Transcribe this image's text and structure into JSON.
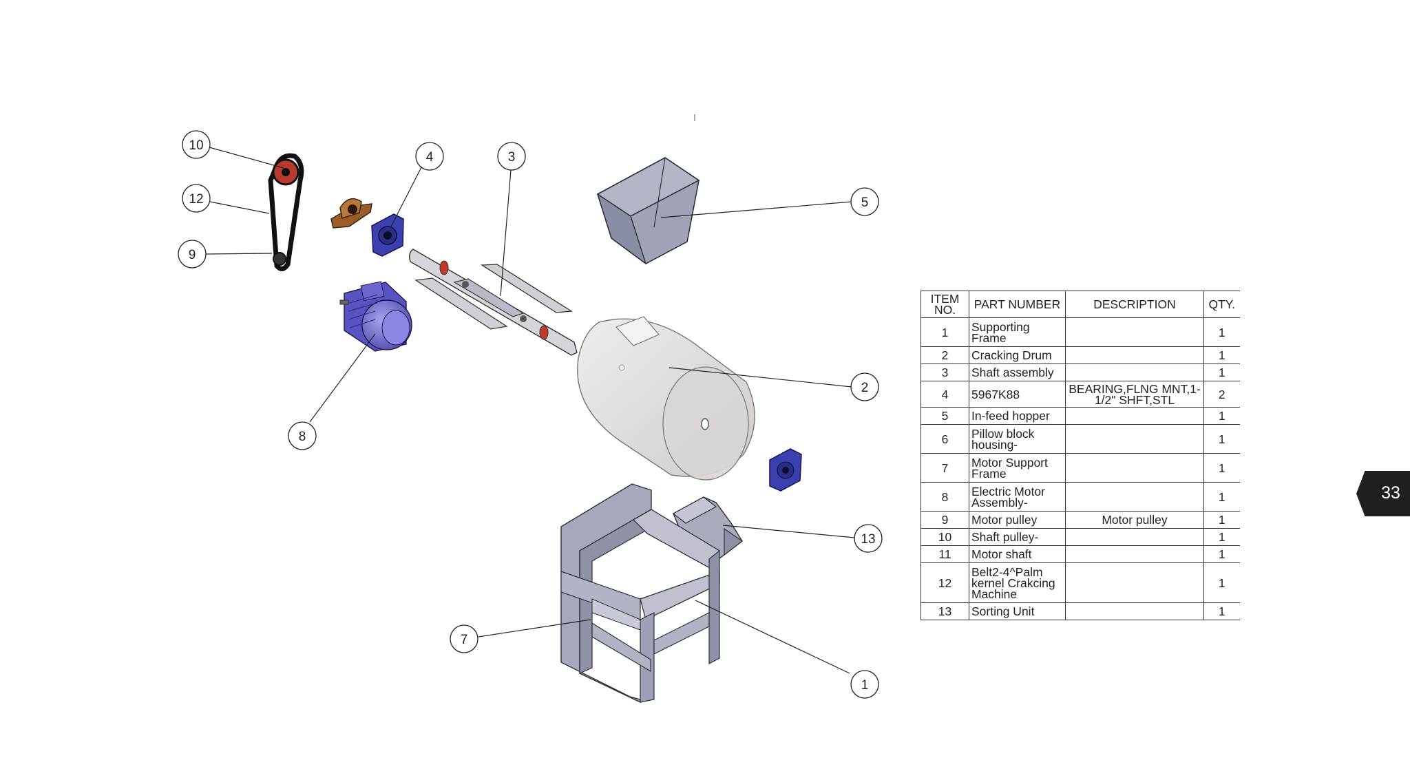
{
  "balloons": [
    {
      "id": "10",
      "label": "10"
    },
    {
      "id": "12",
      "label": "12"
    },
    {
      "id": "9",
      "label": "9"
    },
    {
      "id": "4",
      "label": "4"
    },
    {
      "id": "3",
      "label": "3"
    },
    {
      "id": "5",
      "label": "5"
    },
    {
      "id": "8",
      "label": "8"
    },
    {
      "id": "2",
      "label": "2"
    },
    {
      "id": "13",
      "label": "13"
    },
    {
      "id": "7",
      "label": "7"
    },
    {
      "id": "1",
      "label": "1"
    }
  ],
  "bom": {
    "headers": {
      "item": "ITEM NO.",
      "part": "PART NUMBER",
      "desc": "DESCRIPTION",
      "qty": "QTY."
    },
    "rows": [
      {
        "item": "1",
        "part": "Supporting Frame",
        "desc": "",
        "qty": "1"
      },
      {
        "item": "2",
        "part": "Cracking Drum",
        "desc": "",
        "qty": "1"
      },
      {
        "item": "3",
        "part": "Shaft assembly",
        "desc": "",
        "qty": "1"
      },
      {
        "item": "4",
        "part": "5967K88",
        "desc": "BEARING,FLNG MNT,1-1/2\" SHFT,STL",
        "qty": "2"
      },
      {
        "item": "5",
        "part": "In-feed hopper",
        "desc": "",
        "qty": "1"
      },
      {
        "item": "6",
        "part": "Pillow block housing-",
        "desc": "",
        "qty": "1"
      },
      {
        "item": "7",
        "part": "Motor Support Frame",
        "desc": "",
        "qty": "1"
      },
      {
        "item": "8",
        "part": "Electric Motor Assembly-",
        "desc": "",
        "qty": "1"
      },
      {
        "item": "9",
        "part": "Motor pulley",
        "desc": "Motor pulley",
        "qty": "1"
      },
      {
        "item": "10",
        "part": "Shaft pulley-",
        "desc": "",
        "qty": "1"
      },
      {
        "item": "11",
        "part": "Motor shaft",
        "desc": "",
        "qty": "1"
      },
      {
        "item": "12",
        "part": "Belt2-4^Palm kernel Crakcing Machine",
        "desc": "",
        "qty": "1"
      },
      {
        "item": "13",
        "part": "Sorting Unit",
        "desc": "",
        "qty": "1"
      }
    ]
  },
  "page_number": "33",
  "colors": {
    "frame_steel": "#b9bccb",
    "bearing_blue": "#3b3fb0",
    "motor_purple": "#7b74d4",
    "pulley_red": "#c0392b",
    "housing_bronze": "#a0642e",
    "drum_grey": "#d7d4d2",
    "page_tab": "#202020"
  },
  "icons": {
    "page_tab": "chevron-tab-icon"
  }
}
